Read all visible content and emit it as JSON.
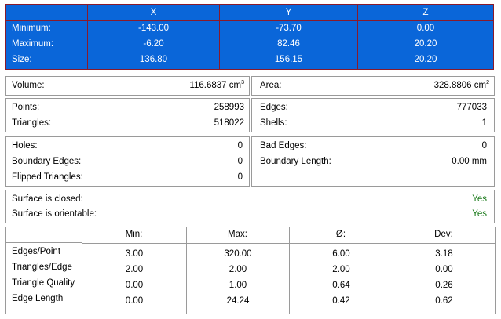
{
  "dimensions": {
    "headers": [
      "X",
      "Y",
      "Z"
    ],
    "rows": [
      {
        "label": "Minimum:",
        "x": "-143.00",
        "y": "-73.70",
        "z": "0.00"
      },
      {
        "label": "Maximum:",
        "x": "-6.20",
        "y": "82.46",
        "z": "20.20"
      },
      {
        "label": "Size:",
        "x": "136.80",
        "y": "156.15",
        "z": "20.20"
      }
    ]
  },
  "volume": {
    "label": "Volume:",
    "value": "116.6837 cm",
    "unit_exp": "3"
  },
  "area": {
    "label": "Area:",
    "value": "328.8806 cm",
    "unit_exp": "2"
  },
  "counts": {
    "points_label": "Points:",
    "points": "258993",
    "triangles_label": "Triangles:",
    "triangles": "518022",
    "edges_label": "Edges:",
    "edges": "777033",
    "shells_label": "Shells:",
    "shells": "1"
  },
  "defects": {
    "holes_label": "Holes:",
    "holes": "0",
    "boundary_edges_label": "Boundary Edges:",
    "boundary_edges": "0",
    "flipped_label": "Flipped Triangles:",
    "flipped": "0",
    "bad_edges_label": "Bad Edges:",
    "bad_edges": "0",
    "boundary_length_label": "Boundary Length:",
    "boundary_length": "0.00 mm"
  },
  "surface": {
    "closed_label": "Surface is closed:",
    "closed": "Yes",
    "orientable_label": "Surface is orientable:",
    "orientable": "Yes"
  },
  "stats": {
    "headers": [
      "Min:",
      "Max:",
      "Ø:",
      "Dev:"
    ],
    "rows": [
      {
        "label": "Edges/Point",
        "min": "3.00",
        "max": "320.00",
        "avg": "6.00",
        "dev": "3.18"
      },
      {
        "label": "Triangles/Edge",
        "min": "2.00",
        "max": "2.00",
        "avg": "2.00",
        "dev": "0.00"
      },
      {
        "label": "Triangle Quality",
        "min": "0.00",
        "max": "1.00",
        "avg": "0.64",
        "dev": "0.26"
      },
      {
        "label": "Edge Length",
        "min": "0.00",
        "max": "24.24",
        "avg": "0.42",
        "dev": "0.62"
      }
    ]
  },
  "colors": {
    "header_blue": "#0a66d9",
    "grid_red": "#8a1a2a",
    "ok_green": "#1a7a1a"
  }
}
